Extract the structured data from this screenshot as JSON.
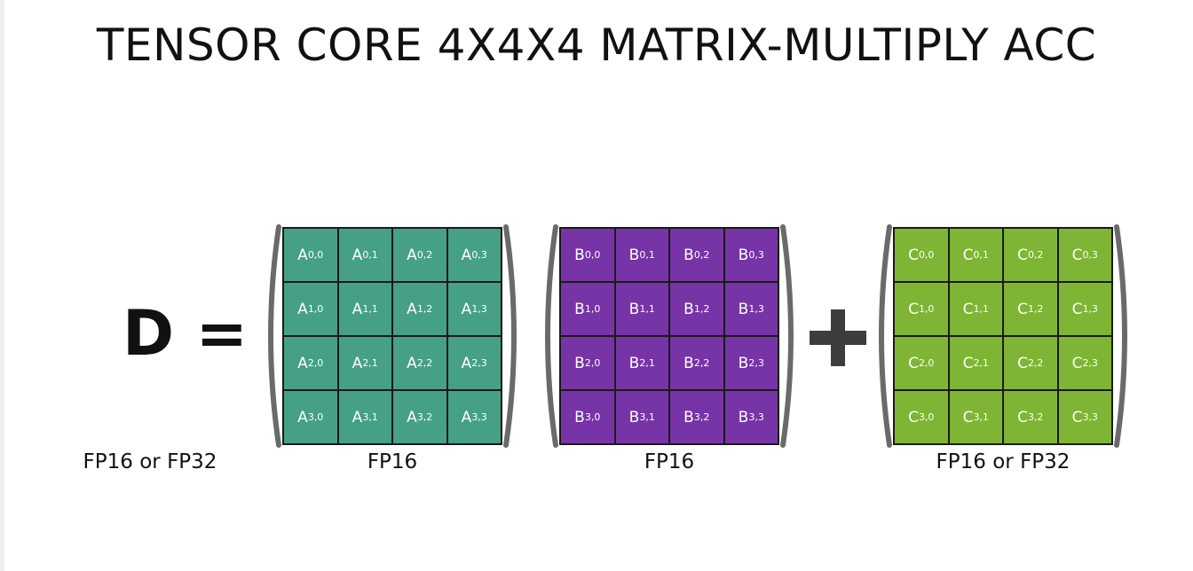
{
  "title": "TENSOR CORE 4X4X4 MATRIX-MULTIPLY ACC",
  "lhs": {
    "text": "D =",
    "type_label": "FP16 or FP32"
  },
  "operators": {
    "plus_icon": "plus-icon"
  },
  "colors": {
    "matrix_a": "#46a086",
    "matrix_b": "#7634a6",
    "matrix_c": "#7eb534",
    "grid_lines": "#1a1a1a",
    "paren": "#6a6a6a",
    "plus": "#3d3d3d"
  },
  "matrices": [
    {
      "id": "a",
      "letter": "A",
      "type_label": "FP16",
      "color": "#46a086",
      "cells": [
        [
          "0,0",
          "0,1",
          "0,2",
          "0,3"
        ],
        [
          "1,0",
          "1,1",
          "1,2",
          "1,3"
        ],
        [
          "2,0",
          "2,1",
          "2,2",
          "2,3"
        ],
        [
          "3,0",
          "3,1",
          "3,2",
          "3,3"
        ]
      ]
    },
    {
      "id": "b",
      "letter": "B",
      "type_label": "FP16",
      "color": "#7634a6",
      "cells": [
        [
          "0,0",
          "0,1",
          "0,2",
          "0,3"
        ],
        [
          "1,0",
          "1,1",
          "1,2",
          "1,3"
        ],
        [
          "2,0",
          "2,1",
          "2,2",
          "2,3"
        ],
        [
          "3,0",
          "3,1",
          "3,2",
          "3,3"
        ]
      ]
    },
    {
      "id": "c",
      "letter": "C",
      "type_label": "FP16 or FP32",
      "color": "#7eb534",
      "cells": [
        [
          "0,0",
          "0,1",
          "0,2",
          "0,3"
        ],
        [
          "1,0",
          "1,1",
          "1,2",
          "1,3"
        ],
        [
          "2,0",
          "2,1",
          "2,2",
          "2,3"
        ],
        [
          "3,0",
          "3,1",
          "3,2",
          "3,3"
        ]
      ]
    }
  ]
}
